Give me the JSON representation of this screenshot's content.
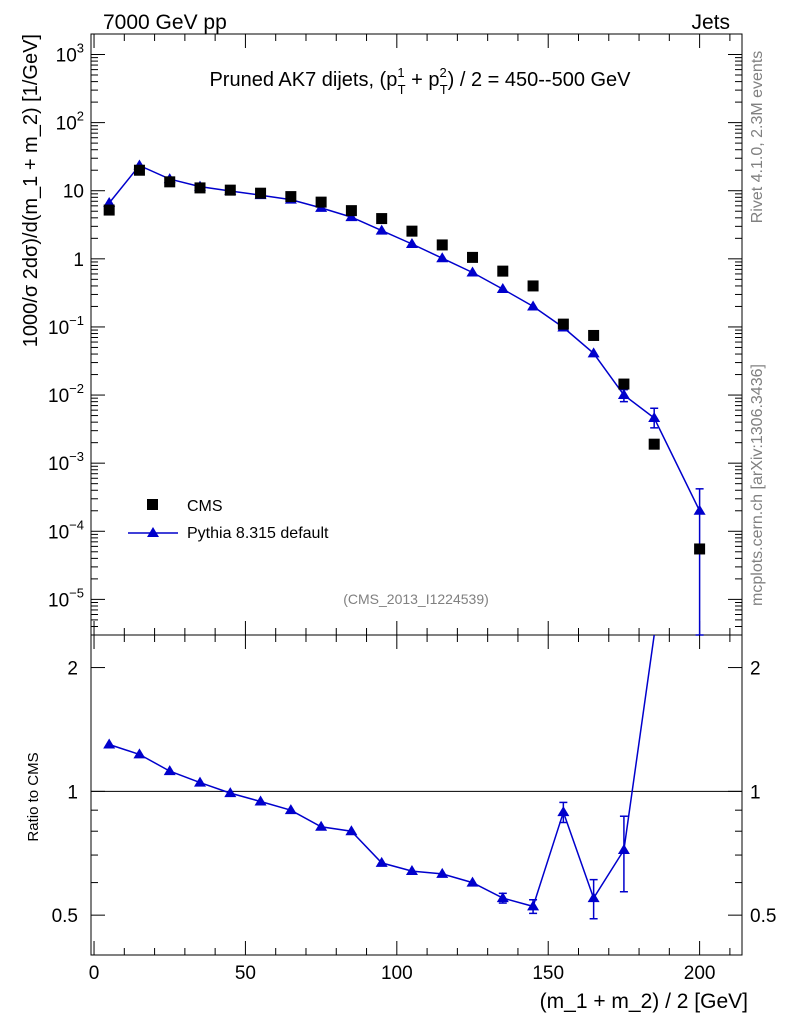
{
  "header": {
    "energy_label": "7000 GeV pp",
    "category_label": "Jets"
  },
  "side_labels": {
    "rivet": "Rivet 4.1.0,  2.3M events",
    "source": "mcplots.cern.ch [arXiv:1306.3436]"
  },
  "analysis_id": "(CMS_2013_I1224539)",
  "chart_data": [
    {
      "type": "scatter",
      "scale": "log",
      "title": "Pruned AK7 dijets, (p_T^1 + p_T^2) / 2 = 450--500 GeV",
      "title_parts": {
        "prefix": "Pruned AK7 dijets, (p",
        "sup1": "1",
        "sub1": "T",
        "mid": " + p",
        "sup2": "2",
        "sub2": "T",
        "suffix": ") / 2 = 450--500 GeV"
      },
      "ylabel": "1000/σ  2dσ)/d(m_1 + m_2) [1/GeV]",
      "xlim": [
        -1,
        214
      ],
      "ylim": [
        3e-06,
        2000
      ],
      "y_ticks": [
        {
          "value": 1000,
          "label": "10",
          "exp": "3"
        },
        {
          "value": 100,
          "label": "10",
          "exp": "2"
        },
        {
          "value": 10,
          "label": "10",
          "exp": ""
        },
        {
          "value": 1,
          "label": "1",
          "exp": ""
        },
        {
          "value": 0.1,
          "label": "10",
          "exp": "−1"
        },
        {
          "value": 0.01,
          "label": "10",
          "exp": "−2"
        },
        {
          "value": 0.001,
          "label": "10",
          "exp": "−3"
        },
        {
          "value": 0.0001,
          "label": "10",
          "exp": "−4"
        },
        {
          "value": 1e-05,
          "label": "10",
          "exp": "−5"
        }
      ],
      "legend": {
        "position": "bottom-left",
        "entries": [
          "CMS",
          "Pythia 8.315 default"
        ]
      },
      "x": [
        5,
        15,
        25,
        35,
        45,
        55,
        65,
        75,
        85,
        95,
        105,
        115,
        125,
        135,
        145,
        155,
        165,
        175,
        185,
        200
      ],
      "series": [
        {
          "name": "CMS",
          "marker": "square",
          "color": "#000000",
          "values": [
            5.2,
            20,
            13.5,
            11,
            10.2,
            9.2,
            8.2,
            6.8,
            5.1,
            3.9,
            2.55,
            1.6,
            1.05,
            0.66,
            0.4,
            0.11,
            0.075,
            0.0145,
            0.0019,
            5.5e-05
          ]
        },
        {
          "name": "Pythia 8.315 default",
          "marker": "triangle",
          "color": "#0000cc",
          "values": [
            6.6,
            23.5,
            14.8,
            11.5,
            9.9,
            8.6,
            7.4,
            5.6,
            4.1,
            2.6,
            1.65,
            1.02,
            0.63,
            0.36,
            0.2,
            0.098,
            0.041,
            0.01,
            0.0046,
            0.0002
          ],
          "err_low": [
            0,
            0,
            0,
            0,
            0,
            0,
            0,
            0,
            0,
            0,
            0,
            0,
            0,
            0,
            0,
            0,
            0,
            0.002,
            0.0013,
            0.000197
          ],
          "err_high": [
            0,
            0,
            0,
            0,
            0,
            0,
            0,
            0,
            0,
            0,
            0,
            0,
            0,
            0,
            0,
            0,
            0,
            0.002,
            0.0018,
            0.00022
          ]
        }
      ]
    },
    {
      "type": "line",
      "scale": "log",
      "ylabel": "Ratio to CMS",
      "xlabel": "(m_1 + m_2) / 2 [GeV]",
      "xlim": [
        -1,
        214
      ],
      "ylim": [
        0.4,
        2.4
      ],
      "x_ticks": [
        0,
        50,
        100,
        150,
        200
      ],
      "y_ticks": [
        0.5,
        1,
        2
      ],
      "reference_line": 1,
      "series": [
        {
          "name": "Pythia 8.315 default",
          "color": "#0000cc",
          "x": [
            5,
            15,
            25,
            35,
            45,
            55,
            65,
            75,
            85,
            95,
            105,
            115,
            125,
            135,
            145,
            155,
            165,
            175,
            185
          ],
          "values": [
            1.3,
            1.23,
            1.12,
            1.05,
            0.99,
            0.945,
            0.9,
            0.82,
            0.8,
            0.67,
            0.64,
            0.63,
            0.6,
            0.55,
            0.525,
            0.89,
            0.55,
            0.72,
            3.0
          ],
          "err_low": [
            0,
            0,
            0,
            0,
            0,
            0,
            0,
            0,
            0,
            0,
            0,
            0,
            0,
            0.015,
            0.02,
            0.05,
            0.06,
            0.15,
            0
          ],
          "err_high": [
            0,
            0,
            0,
            0,
            0,
            0,
            0,
            0,
            0,
            0,
            0,
            0,
            0,
            0.015,
            0.02,
            0.05,
            0.06,
            0.15,
            0
          ]
        }
      ]
    }
  ]
}
